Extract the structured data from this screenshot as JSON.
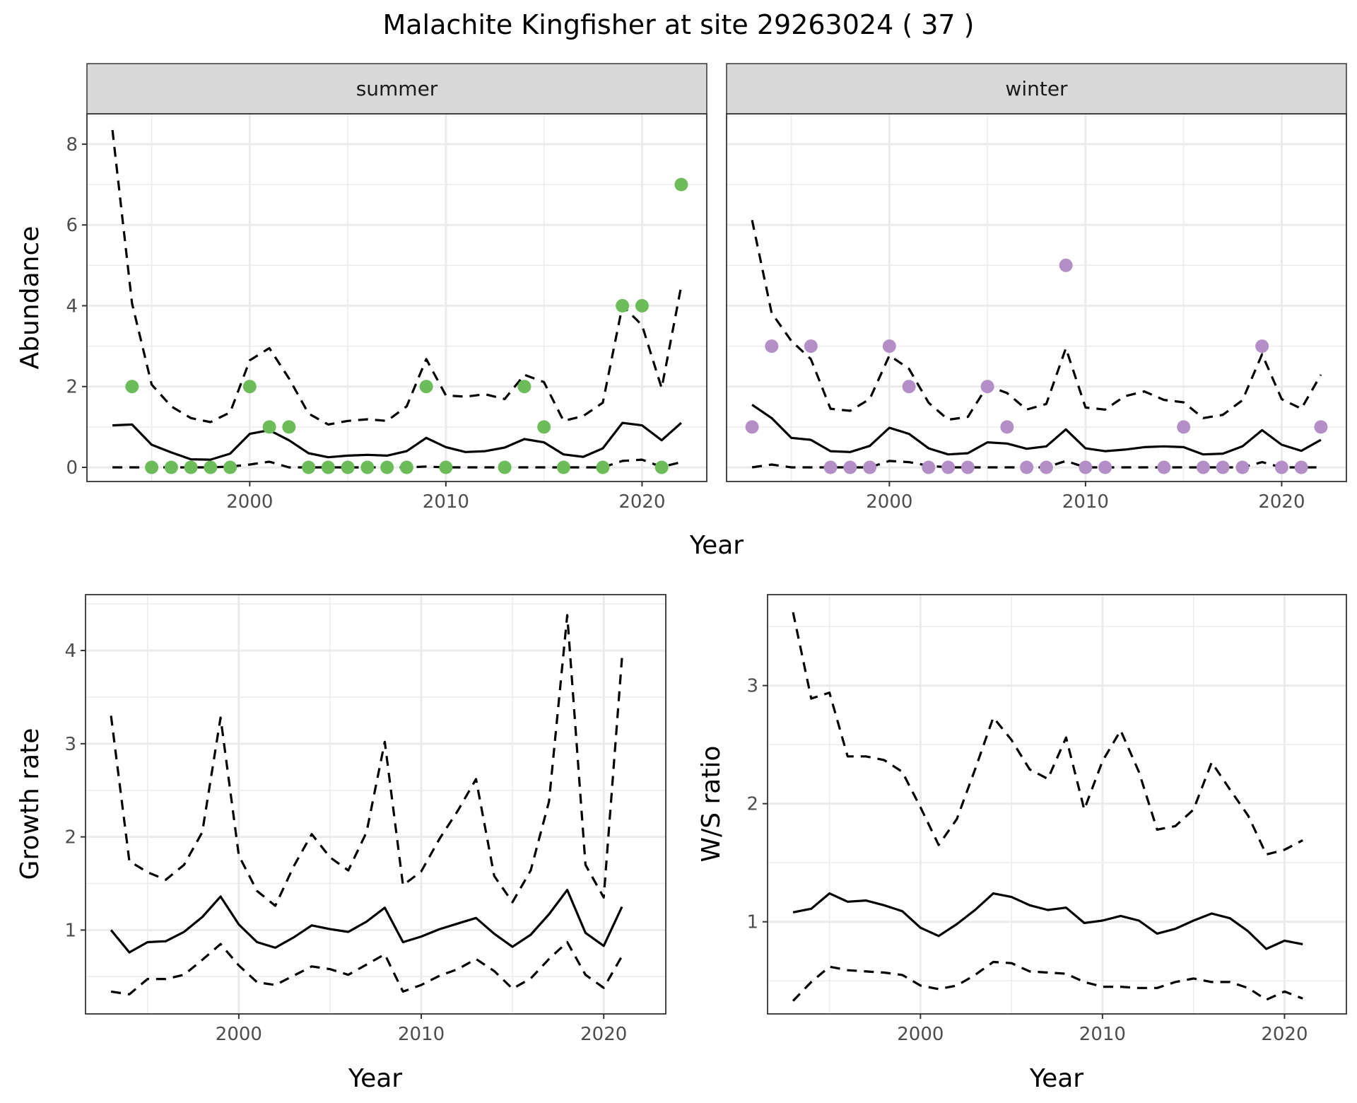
{
  "chart_data": {
    "title": "Malachite Kingfisher at site 29263024 ( 37 )",
    "panels": [
      {
        "id": "abundance-summer",
        "type": "line+scatter",
        "strip_label": "summer",
        "ylabel": "Abundance",
        "xlabel": "Year",
        "ylim": [
          -0.35,
          8.75
        ],
        "xlim": [
          1991.7,
          2023.3
        ],
        "yticks": [
          0,
          2,
          4,
          6,
          8
        ],
        "xticks": [
          2000,
          2010,
          2020
        ],
        "grid": true,
        "point_color": "#6cbd5a",
        "years": [
          1993,
          1994,
          1995,
          1996,
          1997,
          1998,
          1999,
          2000,
          2001,
          2002,
          2003,
          2004,
          2005,
          2006,
          2007,
          2008,
          2009,
          2010,
          2011,
          2012,
          2013,
          2014,
          2015,
          2016,
          2017,
          2018,
          2019,
          2020,
          2021,
          2022
        ],
        "median": [
          1.04,
          1.06,
          0.56,
          0.37,
          0.2,
          0.19,
          0.34,
          0.83,
          0.92,
          0.67,
          0.35,
          0.25,
          0.29,
          0.31,
          0.29,
          0.4,
          0.73,
          0.5,
          0.38,
          0.4,
          0.49,
          0.7,
          0.62,
          0.32,
          0.26,
          0.47,
          1.1,
          1.04,
          0.67,
          1.1
        ],
        "upper": [
          8.35,
          4.06,
          2.05,
          1.51,
          1.22,
          1.12,
          1.36,
          2.65,
          2.95,
          2.2,
          1.33,
          1.06,
          1.15,
          1.19,
          1.15,
          1.51,
          2.68,
          1.78,
          1.75,
          1.81,
          1.69,
          2.29,
          2.11,
          1.15,
          1.27,
          1.6,
          4.0,
          3.52,
          1.96,
          4.49
        ],
        "lower": [
          0,
          0,
          0,
          0,
          0,
          0,
          0.02,
          0.07,
          0.14,
          0,
          0,
          0,
          0,
          0,
          0,
          0,
          0.02,
          0,
          0,
          0,
          0,
          0,
          0,
          0,
          0,
          0,
          0.16,
          0.19,
          0.01,
          0.13
        ],
        "points": [
          {
            "year": 1994,
            "value": 2
          },
          {
            "year": 1995,
            "value": 0
          },
          {
            "year": 1996,
            "value": 0
          },
          {
            "year": 1997,
            "value": 0
          },
          {
            "year": 1998,
            "value": 0
          },
          {
            "year": 1999,
            "value": 0
          },
          {
            "year": 2000,
            "value": 2
          },
          {
            "year": 2001,
            "value": 1
          },
          {
            "year": 2002,
            "value": 1
          },
          {
            "year": 2003,
            "value": 0
          },
          {
            "year": 2004,
            "value": 0
          },
          {
            "year": 2005,
            "value": 0
          },
          {
            "year": 2006,
            "value": 0
          },
          {
            "year": 2007,
            "value": 0
          },
          {
            "year": 2008,
            "value": 0
          },
          {
            "year": 2009,
            "value": 2
          },
          {
            "year": 2010,
            "value": 0
          },
          {
            "year": 2013,
            "value": 0
          },
          {
            "year": 2014,
            "value": 2
          },
          {
            "year": 2015,
            "value": 1
          },
          {
            "year": 2016,
            "value": 0
          },
          {
            "year": 2018,
            "value": 0
          },
          {
            "year": 2019,
            "value": 4
          },
          {
            "year": 2020,
            "value": 4
          },
          {
            "year": 2021,
            "value": 0
          },
          {
            "year": 2022,
            "value": 7
          }
        ]
      },
      {
        "id": "abundance-winter",
        "type": "line+scatter",
        "strip_label": "winter",
        "ylabel": "",
        "xlabel": "Year",
        "ylim": [
          -0.35,
          8.75
        ],
        "xlim": [
          1991.7,
          2023.3
        ],
        "yticks": [
          0,
          2,
          4,
          6,
          8
        ],
        "xticks": [
          2000,
          2010,
          2020
        ],
        "grid": true,
        "point_color": "#b48fc7",
        "years": [
          1993,
          1994,
          1995,
          1996,
          1997,
          1998,
          1999,
          2000,
          2001,
          2002,
          2003,
          2004,
          2005,
          2006,
          2007,
          2008,
          2009,
          2010,
          2011,
          2012,
          2013,
          2014,
          2015,
          2016,
          2017,
          2018,
          2019,
          2020,
          2021,
          2022
        ],
        "median": [
          1.55,
          1.22,
          0.73,
          0.68,
          0.4,
          0.38,
          0.53,
          0.98,
          0.83,
          0.47,
          0.32,
          0.35,
          0.62,
          0.59,
          0.46,
          0.52,
          0.94,
          0.47,
          0.4,
          0.44,
          0.5,
          0.52,
          0.5,
          0.32,
          0.34,
          0.52,
          0.92,
          0.56,
          0.41,
          0.68
        ],
        "upper": [
          6.12,
          3.82,
          3.13,
          2.68,
          1.45,
          1.4,
          1.69,
          2.77,
          2.44,
          1.6,
          1.18,
          1.25,
          2.02,
          1.84,
          1.43,
          1.57,
          2.95,
          1.48,
          1.43,
          1.76,
          1.88,
          1.67,
          1.61,
          1.22,
          1.3,
          1.66,
          2.8,
          1.69,
          1.45,
          2.29
        ],
        "lower": [
          0,
          0.07,
          0,
          0,
          0,
          0,
          0,
          0.16,
          0.13,
          0.04,
          0,
          0,
          0,
          0,
          0,
          0,
          0.16,
          0,
          0,
          0,
          0,
          0,
          0,
          0,
          0,
          0,
          0.13,
          0,
          0,
          0
        ],
        "points": [
          {
            "year": 1993,
            "value": 1
          },
          {
            "year": 1994,
            "value": 3
          },
          {
            "year": 1996,
            "value": 3
          },
          {
            "year": 1997,
            "value": 0
          },
          {
            "year": 1998,
            "value": 0
          },
          {
            "year": 1999,
            "value": 0
          },
          {
            "year": 2000,
            "value": 3
          },
          {
            "year": 2001,
            "value": 2
          },
          {
            "year": 2002,
            "value": 0
          },
          {
            "year": 2003,
            "value": 0
          },
          {
            "year": 2004,
            "value": 0
          },
          {
            "year": 2005,
            "value": 2
          },
          {
            "year": 2006,
            "value": 1
          },
          {
            "year": 2007,
            "value": 0
          },
          {
            "year": 2008,
            "value": 0
          },
          {
            "year": 2009,
            "value": 5
          },
          {
            "year": 2010,
            "value": 0
          },
          {
            "year": 2011,
            "value": 0
          },
          {
            "year": 2014,
            "value": 0
          },
          {
            "year": 2015,
            "value": 1
          },
          {
            "year": 2016,
            "value": 0
          },
          {
            "year": 2017,
            "value": 0
          },
          {
            "year": 2018,
            "value": 0
          },
          {
            "year": 2019,
            "value": 3
          },
          {
            "year": 2020,
            "value": 0
          },
          {
            "year": 2021,
            "value": 0
          },
          {
            "year": 2022,
            "value": 1
          }
        ]
      },
      {
        "id": "growth-rate",
        "type": "line",
        "ylabel": "Growth rate",
        "xlabel": "Year",
        "ylim": [
          0.1,
          4.6
        ],
        "xlim": [
          1991.6,
          2023.4
        ],
        "yticks": [
          1,
          2,
          3,
          4
        ],
        "xticks": [
          2000,
          2010,
          2020
        ],
        "grid": true,
        "years": [
          1993,
          1994,
          1995,
          1996,
          1997,
          1998,
          1999,
          2000,
          2001,
          2002,
          2003,
          2004,
          2005,
          2006,
          2007,
          2008,
          2009,
          2010,
          2011,
          2012,
          2013,
          2014,
          2015,
          2016,
          2017,
          2018,
          2019,
          2020,
          2021
        ],
        "median": [
          1.0,
          0.76,
          0.87,
          0.88,
          0.98,
          1.14,
          1.36,
          1.06,
          0.87,
          0.81,
          0.92,
          1.05,
          1.01,
          0.98,
          1.09,
          1.24,
          0.87,
          0.93,
          1.01,
          1.07,
          1.13,
          0.96,
          0.82,
          0.95,
          1.17,
          1.43,
          0.97,
          0.83,
          1.25
        ],
        "upper": [
          3.3,
          1.74,
          1.62,
          1.54,
          1.7,
          2.05,
          3.28,
          1.8,
          1.42,
          1.26,
          1.68,
          2.03,
          1.78,
          1.64,
          2.05,
          3.02,
          1.48,
          1.63,
          1.98,
          2.28,
          2.62,
          1.58,
          1.3,
          1.64,
          2.38,
          4.38,
          1.7,
          1.35,
          3.92
        ],
        "lower": [
          0.34,
          0.31,
          0.475,
          0.475,
          0.52,
          0.68,
          0.85,
          0.62,
          0.44,
          0.41,
          0.51,
          0.61,
          0.58,
          0.52,
          0.63,
          0.74,
          0.34,
          0.41,
          0.51,
          0.58,
          0.69,
          0.56,
          0.37,
          0.48,
          0.69,
          0.87,
          0.52,
          0.38,
          0.72
        ]
      },
      {
        "id": "ws-ratio",
        "type": "line",
        "ylabel": "W/S ratio",
        "xlabel": "Year",
        "ylim": [
          0.22,
          3.77
        ],
        "xlim": [
          1991.6,
          2023.4
        ],
        "yticks": [
          1,
          2,
          3
        ],
        "xticks": [
          2000,
          2010,
          2020
        ],
        "grid": true,
        "years": [
          1993,
          1994,
          1995,
          1996,
          1997,
          1998,
          1999,
          2000,
          2001,
          2002,
          2003,
          2004,
          2005,
          2006,
          2007,
          2008,
          2009,
          2010,
          2011,
          2012,
          2013,
          2014,
          2015,
          2016,
          2017,
          2018,
          2019,
          2020,
          2021
        ],
        "median": [
          1.08,
          1.11,
          1.24,
          1.17,
          1.18,
          1.14,
          1.09,
          0.95,
          0.88,
          0.98,
          1.1,
          1.24,
          1.21,
          1.14,
          1.1,
          1.12,
          0.99,
          1.01,
          1.05,
          1.01,
          0.9,
          0.94,
          1.01,
          1.07,
          1.03,
          0.92,
          0.77,
          0.84,
          0.81
        ],
        "upper": [
          3.62,
          2.89,
          2.94,
          2.4,
          2.4,
          2.37,
          2.27,
          1.97,
          1.65,
          1.87,
          2.29,
          2.73,
          2.54,
          2.29,
          2.21,
          2.56,
          1.95,
          2.36,
          2.62,
          2.27,
          1.78,
          1.81,
          1.95,
          2.35,
          2.12,
          1.9,
          1.57,
          1.61,
          1.69
        ],
        "lower": [
          0.33,
          0.49,
          0.62,
          0.59,
          0.58,
          0.57,
          0.55,
          0.46,
          0.43,
          0.46,
          0.55,
          0.66,
          0.65,
          0.58,
          0.57,
          0.56,
          0.49,
          0.45,
          0.45,
          0.44,
          0.44,
          0.49,
          0.52,
          0.49,
          0.49,
          0.44,
          0.34,
          0.41,
          0.35
        ]
      }
    ]
  }
}
